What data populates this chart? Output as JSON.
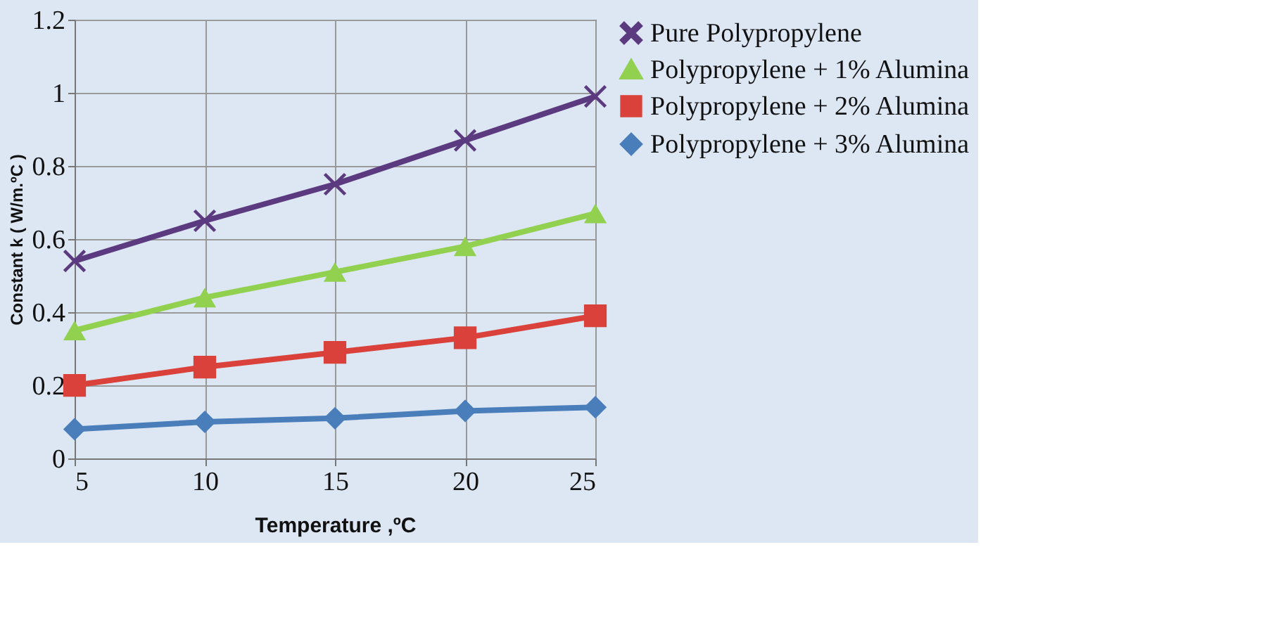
{
  "chart_data": {
    "type": "line",
    "xlabel": "Temperature ,ºC",
    "ylabel": "Constant k ( W/m.ºC )",
    "x": [
      5,
      10,
      15,
      20,
      25
    ],
    "series": [
      {
        "name": "Pure Polypropylene",
        "color": "#5b3a80",
        "marker": "cross",
        "values": [
          0.54,
          0.65,
          0.75,
          0.87,
          0.99
        ]
      },
      {
        "name": "Polypropylene + 1% Alumina",
        "color": "#92d050",
        "marker": "triangle",
        "values": [
          0.35,
          0.44,
          0.51,
          0.58,
          0.67
        ]
      },
      {
        "name": "Polypropylene + 2% Alumina",
        "color": "#d9413a",
        "marker": "square",
        "values": [
          0.2,
          0.25,
          0.29,
          0.33,
          0.39
        ]
      },
      {
        "name": "Polypropylene + 3% Alumina",
        "color": "#4a7ebb",
        "marker": "diamond",
        "values": [
          0.08,
          0.1,
          0.11,
          0.13,
          0.14
        ]
      }
    ],
    "xlim": [
      5,
      25
    ],
    "xticks": [
      5,
      10,
      15,
      20,
      25
    ],
    "ylim": [
      0,
      1.2
    ],
    "yticks": [
      0,
      0.2,
      0.4,
      0.6,
      0.8,
      1,
      1.2
    ],
    "grid": true,
    "legend": "right",
    "line_style": "solid"
  }
}
